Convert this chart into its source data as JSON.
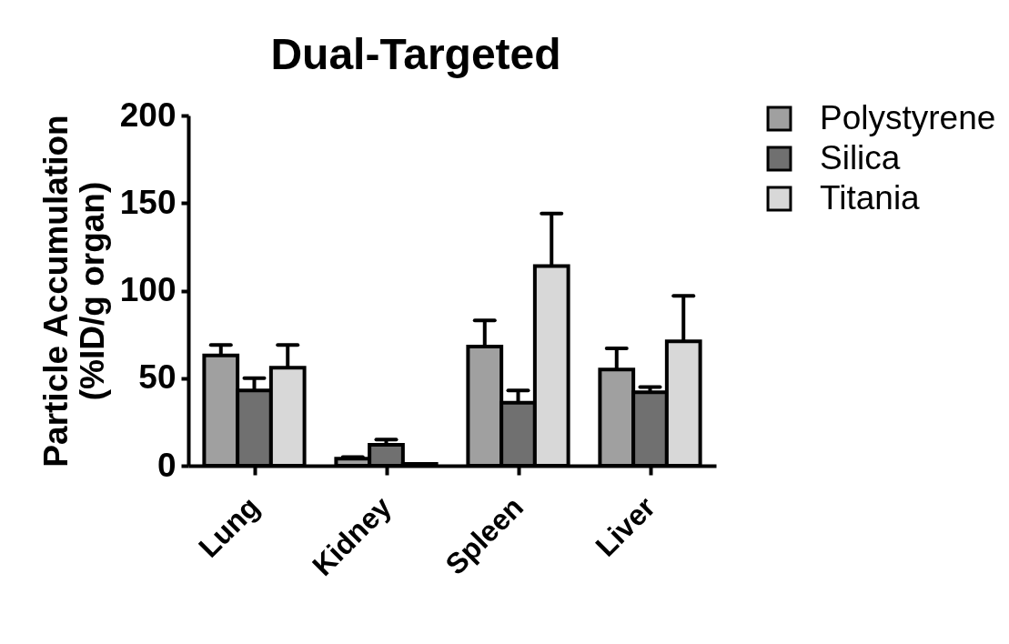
{
  "chart_data": {
    "type": "bar",
    "title": "Dual-Targeted",
    "ylabel": "Particle Accumulation\n(%ID/g organ)",
    "categories": [
      "Lung",
      "Kidney",
      "Spleen",
      "Liver"
    ],
    "series": [
      {
        "name": "Polystyrene",
        "color": "#a0a0a0",
        "values": [
          63,
          4,
          68,
          55
        ],
        "errors": [
          [
            63,
            69
          ],
          [
            4,
            5
          ],
          [
            68,
            83
          ],
          [
            55,
            67
          ]
        ]
      },
      {
        "name": "Silica",
        "color": "#707070",
        "values": [
          43,
          12,
          36,
          42
        ],
        "errors": [
          [
            43,
            50
          ],
          [
            12,
            15
          ],
          [
            36,
            43
          ],
          [
            42,
            45
          ]
        ]
      },
      {
        "name": "Titania",
        "color": "#d8d8d8",
        "values": [
          56,
          1,
          114,
          71
        ],
        "errors": [
          [
            56,
            69
          ],
          null,
          [
            114,
            144
          ],
          [
            71,
            97
          ]
        ]
      }
    ],
    "ylim": [
      0,
      200
    ],
    "yticks": [
      0,
      50,
      100,
      150,
      200
    ],
    "legend": "top right"
  }
}
